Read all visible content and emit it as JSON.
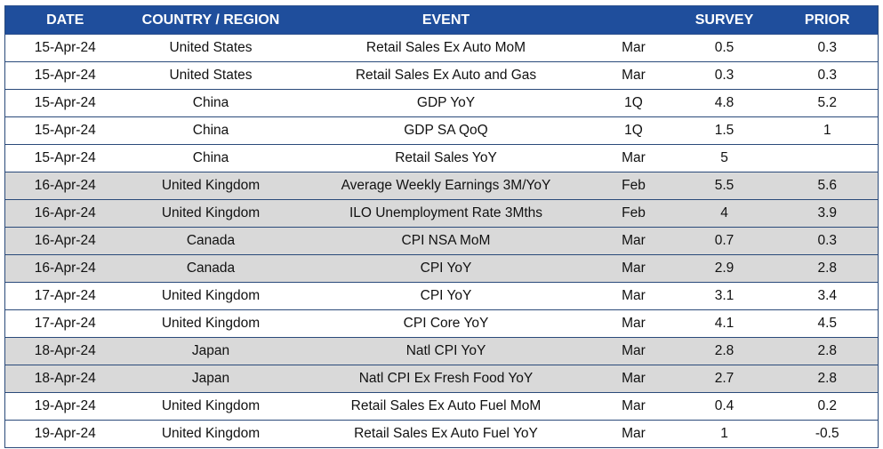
{
  "headers": {
    "date": "DATE",
    "country": "COUNTRY / REGION",
    "event": "EVENT",
    "period": "",
    "survey": "SURVEY",
    "prior": "PRIOR"
  },
  "rows": [
    {
      "date": "15-Apr-24",
      "country": "United States",
      "event": "Retail Sales Ex Auto MoM",
      "period": "Mar",
      "survey": "0.5",
      "prior": "0.3",
      "shaded": false
    },
    {
      "date": "15-Apr-24",
      "country": "United States",
      "event": "Retail Sales Ex Auto and Gas",
      "period": "Mar",
      "survey": "0.3",
      "prior": "0.3",
      "shaded": false
    },
    {
      "date": "15-Apr-24",
      "country": "China",
      "event": "GDP YoY",
      "period": "1Q",
      "survey": "4.8",
      "prior": "5.2",
      "shaded": false
    },
    {
      "date": "15-Apr-24",
      "country": "China",
      "event": "GDP SA QoQ",
      "period": "1Q",
      "survey": "1.5",
      "prior": "1",
      "shaded": false
    },
    {
      "date": "15-Apr-24",
      "country": "China",
      "event": "Retail Sales YoY",
      "period": "Mar",
      "survey": "5",
      "prior": "",
      "shaded": false
    },
    {
      "date": "16-Apr-24",
      "country": "United Kingdom",
      "event": "Average Weekly Earnings 3M/YoY",
      "period": "Feb",
      "survey": "5.5",
      "prior": "5.6",
      "shaded": true
    },
    {
      "date": "16-Apr-24",
      "country": "United Kingdom",
      "event": "ILO Unemployment Rate 3Mths",
      "period": "Feb",
      "survey": "4",
      "prior": "3.9",
      "shaded": true
    },
    {
      "date": "16-Apr-24",
      "country": "Canada",
      "event": "CPI NSA MoM",
      "period": "Mar",
      "survey": "0.7",
      "prior": "0.3",
      "shaded": true
    },
    {
      "date": "16-Apr-24",
      "country": "Canada",
      "event": "CPI YoY",
      "period": "Mar",
      "survey": "2.9",
      "prior": "2.8",
      "shaded": true
    },
    {
      "date": "17-Apr-24",
      "country": "United Kingdom",
      "event": "CPI YoY",
      "period": "Mar",
      "survey": "3.1",
      "prior": "3.4",
      "shaded": false
    },
    {
      "date": "17-Apr-24",
      "country": "United Kingdom",
      "event": "CPI Core YoY",
      "period": "Mar",
      "survey": "4.1",
      "prior": "4.5",
      "shaded": false
    },
    {
      "date": "18-Apr-24",
      "country": "Japan",
      "event": "Natl CPI YoY",
      "period": "Mar",
      "survey": "2.8",
      "prior": "2.8",
      "shaded": true
    },
    {
      "date": "18-Apr-24",
      "country": "Japan",
      "event": "Natl CPI Ex Fresh Food YoY",
      "period": "Mar",
      "survey": "2.7",
      "prior": "2.8",
      "shaded": true
    },
    {
      "date": "19-Apr-24",
      "country": "United Kingdom",
      "event": "Retail Sales Ex Auto Fuel MoM",
      "period": "Mar",
      "survey": "0.4",
      "prior": "0.2",
      "shaded": false
    },
    {
      "date": "19-Apr-24",
      "country": "United Kingdom",
      "event": "Retail Sales Ex Auto Fuel YoY",
      "period": "Mar",
      "survey": "1",
      "prior": "-0.5",
      "shaded": false
    }
  ],
  "colors": {
    "header_bg": "#1f4e9c",
    "header_text": "#ffffff",
    "shaded_row": "#d9d9d9",
    "border": "#2a4a7a"
  }
}
